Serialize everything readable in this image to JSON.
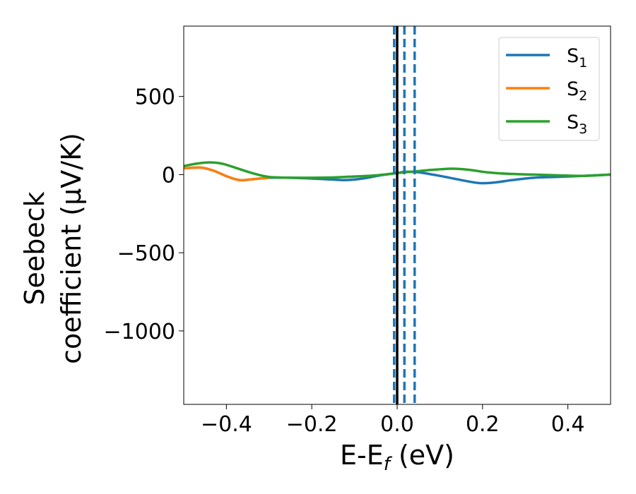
{
  "chart_data": {
    "type": "line",
    "xlabel": "E-E",
    "xlabel_sub": "f",
    "xlabel_unit": " (eV)",
    "ylabel_line1": "Seebeck",
    "ylabel_line2": "coefficient  (μV/K)",
    "xlim": [
      -0.5,
      0.5
    ],
    "ylim": [
      -1470,
      950
    ],
    "x_ticks": [
      -0.4,
      -0.2,
      0.0,
      0.2,
      0.4
    ],
    "x_tick_labels": [
      "−0.4",
      "−0.2",
      "0.0",
      "0.2",
      "0.4"
    ],
    "y_ticks": [
      500,
      0,
      -500,
      -1000
    ],
    "y_tick_labels": [
      "500",
      "0",
      "−500",
      "−1000"
    ],
    "grid": false,
    "legend_position": "top-right",
    "colors": {
      "S1": "#1f77b4",
      "S2": "#ff7f0e",
      "S3": "#2ca02c",
      "fermi": "#000000"
    },
    "vertical_lines": {
      "solid": [
        0.0
      ],
      "dashed": [
        -0.007,
        0.017,
        0.041
      ]
    },
    "series": [
      {
        "name": "S",
        "sub": "1",
        "color": "#1f77b4",
        "x": [
          -0.5,
          -0.46,
          -0.43,
          -0.4,
          -0.37,
          -0.34,
          -0.3,
          -0.25,
          -0.2,
          -0.15,
          -0.12,
          -0.08,
          -0.04,
          0.0,
          0.02,
          0.05,
          0.1,
          0.15,
          0.18,
          0.2,
          0.23,
          0.27,
          0.32,
          0.37,
          0.42,
          0.46,
          0.5
        ],
        "y": [
          40,
          45,
          25,
          -10,
          -35,
          -30,
          -20,
          -20,
          -25,
          -32,
          -35,
          -25,
          -5,
          10,
          18,
          15,
          -8,
          -35,
          -50,
          -55,
          -50,
          -35,
          -20,
          -15,
          -10,
          -5,
          0
        ]
      },
      {
        "name": "S",
        "sub": "2",
        "color": "#ff7f0e",
        "x": [
          -0.5,
          -0.46,
          -0.43,
          -0.4,
          -0.37,
          -0.34,
          -0.3
        ],
        "y": [
          40,
          45,
          25,
          -10,
          -35,
          -30,
          -20
        ]
      },
      {
        "name": "S",
        "sub": "3",
        "color": "#2ca02c",
        "x": [
          -0.5,
          -0.47,
          -0.44,
          -0.41,
          -0.38,
          -0.34,
          -0.3,
          -0.25,
          -0.2,
          -0.15,
          -0.1,
          -0.05,
          0.0,
          0.04,
          0.08,
          0.13,
          0.17,
          0.21,
          0.26,
          0.32,
          0.38,
          0.44,
          0.5
        ],
        "y": [
          55,
          70,
          78,
          70,
          45,
          10,
          -15,
          -20,
          -20,
          -18,
          -12,
          -5,
          10,
          20,
          30,
          38,
          30,
          15,
          5,
          0,
          -5,
          -8,
          0
        ]
      }
    ]
  }
}
